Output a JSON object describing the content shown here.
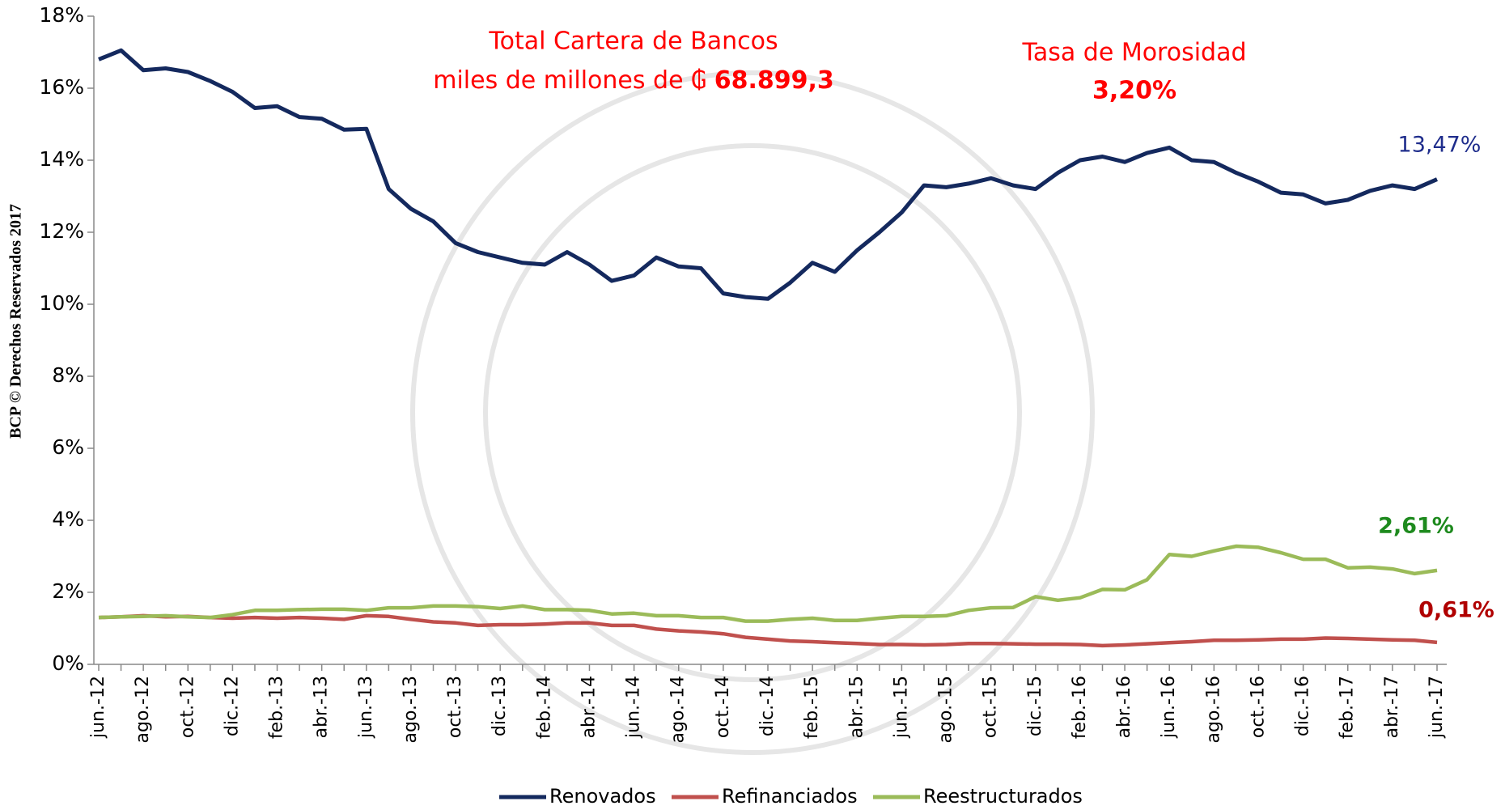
{
  "chart_data": {
    "type": "line",
    "annotations": {
      "cartera_title": "Total Cartera de Bancos",
      "cartera_prefix": "miles de millones de ₲",
      "cartera_value": "68.899,3",
      "morosidad_title": "Tasa de Morosidad",
      "morosidad_value": "3,20%",
      "side_note": "BCP © Derechos Reservados 2017"
    },
    "categories": [
      "jun.-12",
      null,
      "ago.-12",
      null,
      "oct.-12",
      null,
      "dic.-12",
      null,
      "feb.-13",
      null,
      "abr.-13",
      null,
      "jun.-13",
      null,
      "ago.-13",
      null,
      "oct.-13",
      null,
      "dic.-13",
      null,
      "feb.-14",
      null,
      "abr.-14",
      null,
      "jun.-14",
      null,
      "ago.-14",
      null,
      "oct.-14",
      null,
      "dic.-14",
      null,
      "feb.-15",
      null,
      "abr.-15",
      null,
      "jun.-15",
      null,
      "ago.-15",
      null,
      "oct.-15",
      null,
      "dic.-15",
      null,
      "feb.-16",
      null,
      "abr.-16",
      null,
      "jun.-16",
      null,
      "ago.-16",
      null,
      "oct.-16",
      null,
      "dic.-16",
      null,
      "feb.-17",
      null,
      "abr.-17",
      null,
      "jun.-17"
    ],
    "series": [
      {
        "name": "Renovados",
        "color": "#14295e",
        "label_color": "#1f2d8c",
        "values": [
          16.8,
          17.05,
          16.5,
          16.55,
          16.45,
          16.2,
          15.9,
          15.45,
          15.5,
          15.2,
          15.15,
          14.85,
          14.87,
          13.2,
          12.65,
          12.3,
          11.7,
          11.45,
          11.3,
          11.15,
          11.1,
          11.45,
          11.1,
          10.65,
          10.8,
          11.3,
          11.05,
          11.0,
          10.3,
          10.2,
          10.15,
          10.6,
          11.15,
          10.9,
          11.5,
          12.0,
          12.55,
          13.3,
          13.25,
          13.35,
          13.5,
          13.3,
          13.2,
          13.65,
          14.0,
          14.1,
          13.95,
          14.2,
          14.35,
          14.0,
          13.95,
          13.65,
          13.4,
          13.1,
          13.05,
          12.8,
          12.9,
          13.15,
          13.3,
          13.2,
          13.47
        ],
        "value_labels": [
          null,
          null,
          null,
          null,
          null,
          null,
          null,
          null,
          null,
          null,
          null,
          null,
          null,
          null,
          null,
          null,
          null,
          null,
          null,
          null,
          null,
          null,
          null,
          null,
          null,
          null,
          null,
          null,
          null,
          null,
          null,
          null,
          null,
          null,
          null,
          null,
          null,
          null,
          null,
          null,
          null,
          null,
          null,
          null,
          null,
          null,
          null,
          null,
          null,
          null,
          null,
          null,
          null,
          null,
          null,
          null,
          null,
          null,
          null,
          null,
          "13,47%"
        ]
      },
      {
        "name": "Refinanciados",
        "color": "#c0504d",
        "label_color": "#b00000",
        "values": [
          1.3,
          1.32,
          1.35,
          1.32,
          1.33,
          1.3,
          1.28,
          1.3,
          1.28,
          1.3,
          1.28,
          1.25,
          1.35,
          1.33,
          1.25,
          1.18,
          1.15,
          1.08,
          1.1,
          1.1,
          1.12,
          1.15,
          1.15,
          1.08,
          1.08,
          0.98,
          0.93,
          0.9,
          0.85,
          0.75,
          0.7,
          0.65,
          0.63,
          0.6,
          0.58,
          0.55,
          0.55,
          0.54,
          0.55,
          0.58,
          0.58,
          0.57,
          0.56,
          0.56,
          0.55,
          0.52,
          0.54,
          0.57,
          0.6,
          0.63,
          0.67,
          0.67,
          0.68,
          0.7,
          0.7,
          0.73,
          0.72,
          0.7,
          0.68,
          0.67,
          0.61
        ],
        "value_labels": [
          null,
          null,
          null,
          null,
          null,
          null,
          null,
          null,
          null,
          null,
          null,
          null,
          null,
          null,
          null,
          null,
          null,
          null,
          null,
          null,
          null,
          null,
          null,
          null,
          null,
          null,
          null,
          null,
          null,
          null,
          null,
          null,
          null,
          null,
          null,
          null,
          null,
          null,
          null,
          null,
          null,
          null,
          null,
          null,
          null,
          null,
          null,
          null,
          null,
          null,
          null,
          null,
          null,
          null,
          null,
          null,
          null,
          null,
          null,
          null,
          "0,61%"
        ]
      },
      {
        "name": "Reestructurados",
        "color": "#9bbb59",
        "label_color": "#1e8a1e",
        "values": [
          1.3,
          1.32,
          1.33,
          1.35,
          1.32,
          1.3,
          1.38,
          1.5,
          1.5,
          1.52,
          1.53,
          1.53,
          1.5,
          1.57,
          1.57,
          1.62,
          1.62,
          1.6,
          1.55,
          1.62,
          1.52,
          1.52,
          1.5,
          1.4,
          1.42,
          1.35,
          1.35,
          1.3,
          1.3,
          1.2,
          1.2,
          1.25,
          1.28,
          1.22,
          1.22,
          1.28,
          1.33,
          1.33,
          1.35,
          1.5,
          1.57,
          1.58,
          1.88,
          1.78,
          1.85,
          2.08,
          2.07,
          2.35,
          3.05,
          3.0,
          3.15,
          3.28,
          3.25,
          3.1,
          2.92,
          2.92,
          2.68,
          2.7,
          2.65,
          2.52,
          2.61
        ],
        "value_labels": [
          null,
          null,
          null,
          null,
          null,
          null,
          null,
          null,
          null,
          null,
          null,
          null,
          null,
          null,
          null,
          null,
          null,
          null,
          null,
          null,
          null,
          null,
          null,
          null,
          null,
          null,
          null,
          null,
          null,
          null,
          null,
          null,
          null,
          null,
          null,
          null,
          null,
          null,
          null,
          null,
          null,
          null,
          null,
          null,
          null,
          null,
          null,
          null,
          null,
          null,
          null,
          null,
          null,
          null,
          null,
          null,
          null,
          null,
          null,
          null,
          "2,61%"
        ]
      }
    ],
    "ylim": [
      0,
      18
    ],
    "yticks": [
      {
        "value": 0,
        "label": "0%"
      },
      {
        "value": 2,
        "label": "2%"
      },
      {
        "value": 4,
        "label": "4%"
      },
      {
        "value": 6,
        "label": "6%"
      },
      {
        "value": 8,
        "label": "8%"
      },
      {
        "value": 10,
        "label": "10%"
      },
      {
        "value": 12,
        "label": "12%"
      },
      {
        "value": 14,
        "label": "14%"
      },
      {
        "value": 16,
        "label": "16%"
      },
      {
        "value": 18,
        "label": "18%"
      }
    ],
    "grid": false,
    "legend": "bottom"
  }
}
